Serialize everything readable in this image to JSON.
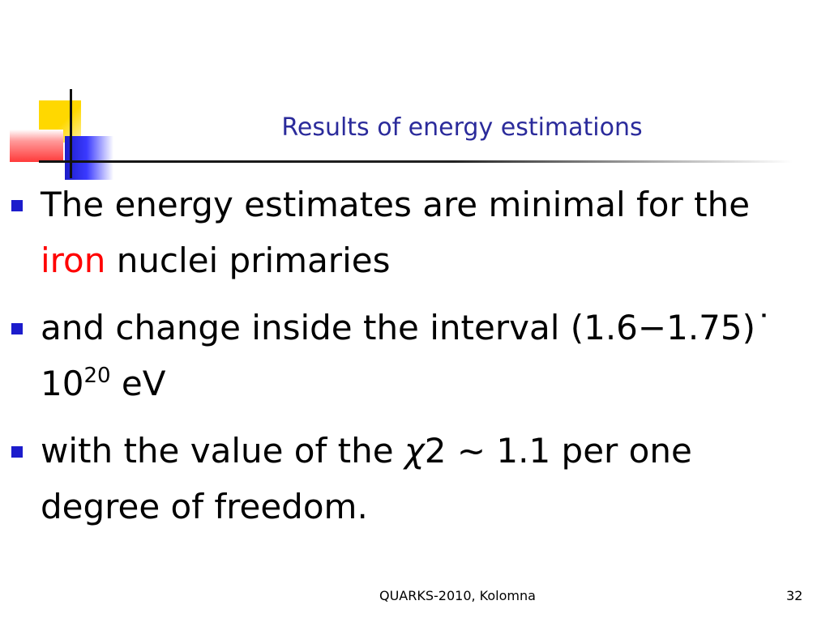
{
  "title": "Results of energy estimations",
  "bullets": {
    "b1_part1": "The energy estimates are minimal for the ",
    "b1_highlight": "iron",
    "b1_part2": " nuclei primaries",
    "b2_part1": "and change inside the interval (1.6−1.75)˙ 10",
    "b2_sup": "20",
    "b2_part2": " eV",
    "b3_part1": "with the value of the ",
    "b3_symbol": "χ",
    "b3_part2": "2 ~ 1.1 per one degree of freedom."
  },
  "footer": {
    "conference": "QUARKS-2010, Kolomna",
    "page_number": "32"
  },
  "colors": {
    "title": "#2b2b9b",
    "highlight": "#ff0000",
    "bullet_marker": "#1c1ccc"
  }
}
